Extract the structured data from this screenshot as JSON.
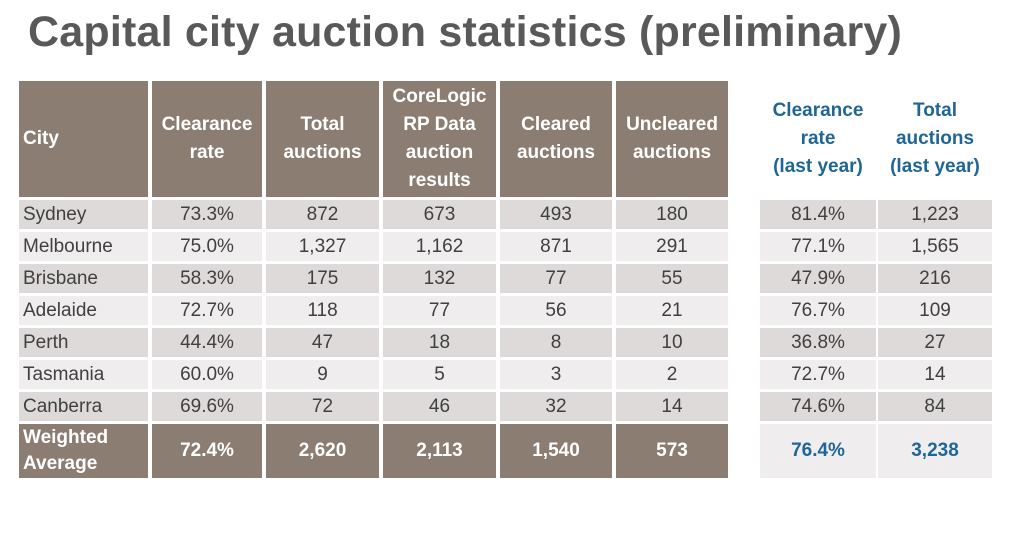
{
  "title": "Capital city auction statistics (preliminary)",
  "headers": {
    "city": "City",
    "clearance_rate": [
      "Clearance",
      "rate"
    ],
    "total_auctions": [
      "Total",
      "auctions"
    ],
    "corelogic": [
      "CoreLogic",
      "RP Data",
      "auction",
      "results"
    ],
    "cleared": [
      "Cleared",
      "auctions"
    ],
    "uncleared": [
      "Uncleared",
      "auctions"
    ]
  },
  "headers_last_year": {
    "clearance_rate": [
      "Clearance",
      "rate",
      "(last year)"
    ],
    "total_auctions": [
      "Total",
      "auctions",
      "(last year)"
    ]
  },
  "rows": [
    {
      "city": "Sydney",
      "clearance_rate": "73.3%",
      "total_auctions": "872",
      "corelogic_results": "673",
      "cleared": "493",
      "uncleared": "180",
      "clearance_rate_last_year": "81.4%",
      "total_auctions_last_year": "1,223"
    },
    {
      "city": "Melbourne",
      "clearance_rate": "75.0%",
      "total_auctions": "1,327",
      "corelogic_results": "1,162",
      "cleared": "871",
      "uncleared": "291",
      "clearance_rate_last_year": "77.1%",
      "total_auctions_last_year": "1,565"
    },
    {
      "city": "Brisbane",
      "clearance_rate": "58.3%",
      "total_auctions": "175",
      "corelogic_results": "132",
      "cleared": "77",
      "uncleared": "55",
      "clearance_rate_last_year": "47.9%",
      "total_auctions_last_year": "216"
    },
    {
      "city": "Adelaide",
      "clearance_rate": "72.7%",
      "total_auctions": "118",
      "corelogic_results": "77",
      "cleared": "56",
      "uncleared": "21",
      "clearance_rate_last_year": "76.7%",
      "total_auctions_last_year": "109"
    },
    {
      "city": "Perth",
      "clearance_rate": "44.4%",
      "total_auctions": "47",
      "corelogic_results": "18",
      "cleared": "8",
      "uncleared": "10",
      "clearance_rate_last_year": "36.8%",
      "total_auctions_last_year": "27"
    },
    {
      "city": "Tasmania",
      "clearance_rate": "60.0%",
      "total_auctions": "9",
      "corelogic_results": "5",
      "cleared": "3",
      "uncleared": "2",
      "clearance_rate_last_year": "72.7%",
      "total_auctions_last_year": "14"
    },
    {
      "city": "Canberra",
      "clearance_rate": "69.6%",
      "total_auctions": "72",
      "corelogic_results": "46",
      "cleared": "32",
      "uncleared": "14",
      "clearance_rate_last_year": "74.6%",
      "total_auctions_last_year": "84"
    }
  ],
  "weighted_average": {
    "label": [
      "Weighted",
      "Average"
    ],
    "clearance_rate": "72.4%",
    "total_auctions": "2,620",
    "corelogic_results": "2,113",
    "cleared": "1,540",
    "uncleared": "573",
    "clearance_rate_last_year": "76.4%",
    "total_auctions_last_year": "3,238"
  },
  "colors": {
    "header_bg": "#8b7d72",
    "header_text": "#ffffff",
    "last_year_text": "#1f6696",
    "row_dark": "#dedad9",
    "row_light": "#efeded",
    "title_text": "#595959"
  }
}
